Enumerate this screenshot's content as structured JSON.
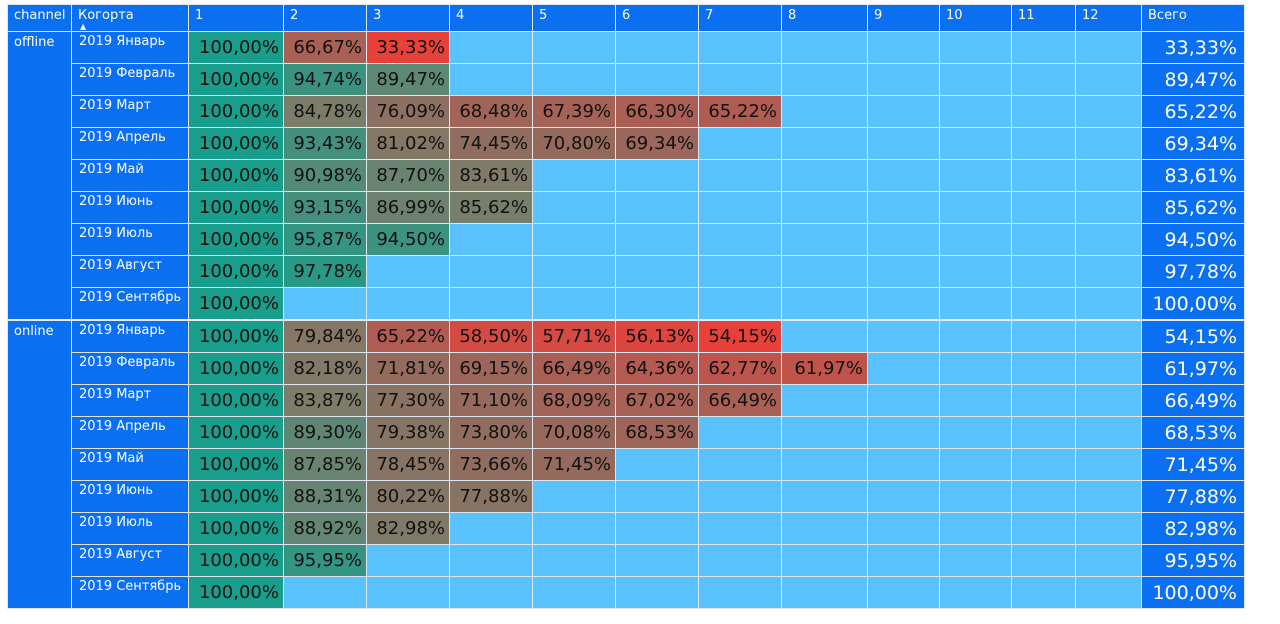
{
  "headers": {
    "channel": "channel",
    "cohort": "Когорта",
    "months": [
      "1",
      "2",
      "3",
      "4",
      "5",
      "6",
      "7",
      "8",
      "9",
      "10",
      "11",
      "12"
    ],
    "total": "Всего",
    "sort_indicator": "▲"
  },
  "colors": {
    "header_bg": "#0a6ff0",
    "empty_cell": "#5ac2ff",
    "high_retention": "#1a9e8c",
    "mid_retention": "#7b7d6a",
    "low_retention": "#e8413a"
  },
  "groups": [
    {
      "channel": "offline",
      "rows": [
        {
          "cohort": "2019 Январь",
          "values": [
            "100,00%",
            "66,67%",
            "33,33%"
          ],
          "total": "33,33%"
        },
        {
          "cohort": "2019 Февраль",
          "values": [
            "100,00%",
            "94,74%",
            "89,47%"
          ],
          "total": "89,47%"
        },
        {
          "cohort": "2019 Март",
          "values": [
            "100,00%",
            "84,78%",
            "76,09%",
            "68,48%",
            "67,39%",
            "66,30%",
            "65,22%"
          ],
          "total": "65,22%"
        },
        {
          "cohort": "2019 Апрель",
          "values": [
            "100,00%",
            "93,43%",
            "81,02%",
            "74,45%",
            "70,80%",
            "69,34%"
          ],
          "total": "69,34%"
        },
        {
          "cohort": "2019 Май",
          "values": [
            "100,00%",
            "90,98%",
            "87,70%",
            "83,61%"
          ],
          "total": "83,61%"
        },
        {
          "cohort": "2019 Июнь",
          "values": [
            "100,00%",
            "93,15%",
            "86,99%",
            "85,62%"
          ],
          "total": "85,62%"
        },
        {
          "cohort": "2019 Июль",
          "values": [
            "100,00%",
            "95,87%",
            "94,50%"
          ],
          "total": "94,50%"
        },
        {
          "cohort": "2019 Август",
          "values": [
            "100,00%",
            "97,78%"
          ],
          "total": "97,78%"
        },
        {
          "cohort": "2019 Сентябрь",
          "values": [
            "100,00%"
          ],
          "total": "100,00%"
        }
      ]
    },
    {
      "channel": "online",
      "rows": [
        {
          "cohort": "2019 Январь",
          "values": [
            "100,00%",
            "79,84%",
            "65,22%",
            "58,50%",
            "57,71%",
            "56,13%",
            "54,15%"
          ],
          "total": "54,15%"
        },
        {
          "cohort": "2019 Февраль",
          "values": [
            "100,00%",
            "82,18%",
            "71,81%",
            "69,15%",
            "66,49%",
            "64,36%",
            "62,77%",
            "61,97%"
          ],
          "total": "61,97%"
        },
        {
          "cohort": "2019 Март",
          "values": [
            "100,00%",
            "83,87%",
            "77,30%",
            "71,10%",
            "68,09%",
            "67,02%",
            "66,49%"
          ],
          "total": "66,49%"
        },
        {
          "cohort": "2019 Апрель",
          "values": [
            "100,00%",
            "89,30%",
            "79,38%",
            "73,80%",
            "70,08%",
            "68,53%"
          ],
          "total": "68,53%"
        },
        {
          "cohort": "2019 Май",
          "values": [
            "100,00%",
            "87,85%",
            "78,45%",
            "73,66%",
            "71,45%"
          ],
          "total": "71,45%"
        },
        {
          "cohort": "2019 Июнь",
          "values": [
            "100,00%",
            "88,31%",
            "80,22%",
            "77,88%"
          ],
          "total": "77,88%"
        },
        {
          "cohort": "2019 Июль",
          "values": [
            "100,00%",
            "88,92%",
            "82,98%"
          ],
          "total": "82,98%"
        },
        {
          "cohort": "2019 Август",
          "values": [
            "100,00%",
            "95,95%"
          ],
          "total": "95,95%"
        },
        {
          "cohort": "2019 Сентябрь",
          "values": [
            "100,00%"
          ],
          "total": "100,00%"
        }
      ]
    }
  ]
}
